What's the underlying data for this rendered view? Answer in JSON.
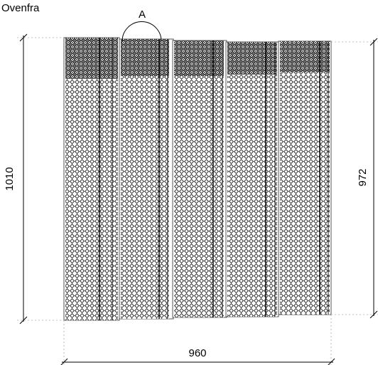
{
  "view_title": "Ovenfra",
  "detail_marker": "A",
  "dimensions": {
    "total_width": "960",
    "left_height": "1010",
    "right_height": "972"
  },
  "panel_count": 5
}
